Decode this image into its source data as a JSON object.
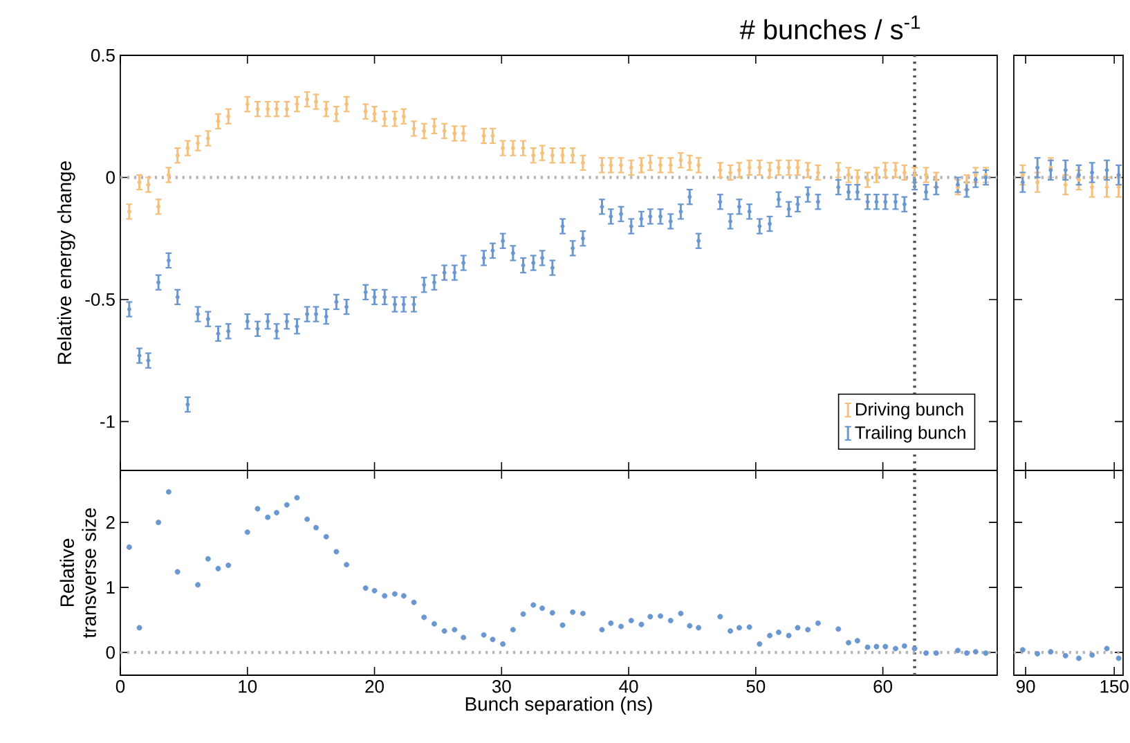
{
  "chart_data": [
    {
      "type": "scatter",
      "title": "# bunches / s$^{-1}$",
      "ylabel": "Relative energy change",
      "marker": "circle",
      "legend": "bottom right",
      "tick_labels": "y",
      "xlim": [
        0,
        69
      ],
      "ylim": [
        -1.2,
        0.5
      ],
      "xticks": [
        0,
        10,
        20,
        30,
        40,
        50,
        60
      ],
      "yticks": [
        {
          "value": 0.5,
          "label": "0.5"
        },
        0,
        -0.5,
        -1
      ],
      "ref_lines": [
        {
          "axis": "y",
          "value": 0,
          "color": "#b4b4b4",
          "line_style": "dotted"
        },
        {
          "axis": "x",
          "value": 62.5,
          "color": "#555555",
          "line_style": "dotted"
        }
      ],
      "x": [
        0.7,
        1.5,
        2.2,
        3.0,
        3.8,
        4.5,
        5.3,
        6.1,
        6.9,
        7.7,
        8.5,
        10.0,
        10.8,
        11.6,
        12.3,
        13.1,
        13.9,
        14.7,
        15.4,
        16.2,
        17.0,
        17.8,
        19.3,
        20.0,
        20.8,
        21.6,
        22.3,
        23.1,
        23.9,
        24.7,
        25.5,
        26.3,
        27.0,
        28.6,
        29.3,
        30.1,
        30.9,
        31.7,
        32.5,
        33.2,
        34.0,
        34.8,
        35.6,
        36.4,
        37.9,
        38.6,
        39.4,
        40.2,
        41.0,
        41.7,
        42.5,
        43.3,
        44.1,
        44.8,
        45.5,
        47.2,
        48.0,
        48.7,
        49.5,
        50.3,
        51.1,
        51.8,
        52.6,
        53.3,
        54.1,
        54.9,
        56.5,
        57.3,
        58.0,
        58.8,
        59.5,
        60.2,
        61.0,
        61.7,
        62.5,
        63.4,
        64.2,
        65.9,
        66.6,
        67.3,
        68.1
      ],
      "series": [
        {
          "name": "Driving bunch",
          "color": "#f4c07c",
          "values": [
            -0.14,
            -0.02,
            -0.03,
            -0.12,
            0.01,
            0.09,
            0.12,
            0.14,
            0.16,
            0.23,
            0.25,
            0.3,
            0.28,
            0.28,
            0.28,
            0.28,
            0.3,
            0.32,
            0.31,
            0.28,
            0.26,
            0.3,
            0.27,
            0.26,
            0.24,
            0.24,
            0.25,
            0.2,
            0.19,
            0.21,
            0.19,
            0.18,
            0.18,
            0.17,
            0.17,
            0.12,
            0.12,
            0.12,
            0.09,
            0.1,
            0.09,
            0.09,
            0.09,
            0.06,
            0.05,
            0.05,
            0.05,
            0.04,
            0.05,
            0.06,
            0.05,
            0.05,
            0.07,
            0.06,
            0.05,
            0.03,
            0.02,
            0.03,
            0.04,
            0.04,
            0.03,
            0.04,
            0.04,
            0.04,
            0.03,
            0.02,
            0.03,
            0.01,
            0,
            -0.01,
            0.01,
            0.03,
            0.03,
            0.02,
            0.01,
            0.01,
            -0.01,
            -0.04,
            -0.02,
            0.01,
            0.01
          ],
          "errors": [
            0.03,
            0.03,
            0.03,
            0.03,
            0.03,
            0.03,
            0.03,
            0.03,
            0.03,
            0.03,
            0.03,
            0.03,
            0.03,
            0.03,
            0.03,
            0.03,
            0.03,
            0.03,
            0.03,
            0.03,
            0.03,
            0.03,
            0.03,
            0.03,
            0.03,
            0.03,
            0.03,
            0.03,
            0.03,
            0.03,
            0.03,
            0.03,
            0.03,
            0.03,
            0.03,
            0.03,
            0.03,
            0.03,
            0.03,
            0.03,
            0.03,
            0.03,
            0.03,
            0.03,
            0.03,
            0.03,
            0.03,
            0.03,
            0.03,
            0.03,
            0.03,
            0.03,
            0.03,
            0.03,
            0.03,
            0.03,
            0.03,
            0.03,
            0.03,
            0.03,
            0.03,
            0.03,
            0.03,
            0.03,
            0.03,
            0.03,
            0.03,
            0.03,
            0.03,
            0.03,
            0.03,
            0.03,
            0.03,
            0.03,
            0.03,
            0.03,
            0.03,
            0.03,
            0.03,
            0.03,
            0.03
          ]
        },
        {
          "name": "Trailing bunch",
          "color": "#6a97cf",
          "values": [
            -0.54,
            -0.73,
            -0.75,
            -0.43,
            -0.34,
            -0.49,
            -0.93,
            -0.56,
            -0.58,
            -0.64,
            -0.63,
            -0.59,
            -0.62,
            -0.59,
            -0.63,
            -0.59,
            -0.61,
            -0.56,
            -0.56,
            -0.57,
            -0.51,
            -0.53,
            -0.47,
            -0.49,
            -0.49,
            -0.52,
            -0.52,
            -0.52,
            -0.44,
            -0.43,
            -0.39,
            -0.39,
            -0.35,
            -0.33,
            -0.3,
            -0.26,
            -0.31,
            -0.36,
            -0.35,
            -0.33,
            -0.37,
            -0.2,
            -0.29,
            -0.25,
            -0.12,
            -0.16,
            -0.15,
            -0.2,
            -0.17,
            -0.16,
            -0.16,
            -0.18,
            -0.14,
            -0.08,
            -0.26,
            -0.1,
            -0.18,
            -0.12,
            -0.14,
            -0.2,
            -0.19,
            -0.09,
            -0.13,
            -0.11,
            -0.07,
            -0.1,
            -0.04,
            -0.06,
            -0.06,
            -0.1,
            -0.1,
            -0.1,
            -0.1,
            -0.11,
            -0.02,
            -0.06,
            -0.04,
            -0.03,
            -0.05,
            -0.01,
            0
          ],
          "errors": [
            0.03,
            0.03,
            0.03,
            0.03,
            0.03,
            0.03,
            0.03,
            0.03,
            0.03,
            0.03,
            0.03,
            0.03,
            0.03,
            0.03,
            0.03,
            0.03,
            0.03,
            0.03,
            0.03,
            0.03,
            0.03,
            0.03,
            0.03,
            0.03,
            0.03,
            0.03,
            0.03,
            0.03,
            0.03,
            0.03,
            0.03,
            0.03,
            0.03,
            0.03,
            0.03,
            0.03,
            0.03,
            0.03,
            0.03,
            0.03,
            0.03,
            0.03,
            0.03,
            0.03,
            0.03,
            0.03,
            0.03,
            0.03,
            0.03,
            0.03,
            0.03,
            0.03,
            0.03,
            0.03,
            0.03,
            0.03,
            0.03,
            0.03,
            0.03,
            0.03,
            0.03,
            0.03,
            0.03,
            0.03,
            0.03,
            0.03,
            0.03,
            0.03,
            0.03,
            0.03,
            0.03,
            0.03,
            0.03,
            0.03,
            0.03,
            0.03,
            0.03,
            0.03,
            0.03,
            0.03,
            0.03
          ]
        }
      ]
    },
    {
      "type": "scatter",
      "marker": "circle",
      "tick_labels": false,
      "xlim": [
        82,
        156
      ],
      "ylim": [
        -1.2,
        0.5
      ],
      "xticks": [
        90,
        150
      ],
      "yticks": [
        0.5,
        0,
        -0.5,
        -1
      ],
      "ref_lines": [
        {
          "axis": "y",
          "value": 0,
          "color": "#b4b4b4",
          "line_style": "dotted"
        }
      ],
      "x": [
        88,
        98,
        107,
        117,
        126,
        135,
        145,
        153
      ],
      "series": [
        {
          "color": "#f4c07c",
          "values": [
            0.01,
            -0.02,
            0.04,
            -0.03,
            -0.01,
            -0.04,
            -0.04,
            -0.04
          ],
          "errors": [
            0.04,
            0.04,
            0.04,
            0.04,
            0.04,
            0.04,
            0.04,
            0.04
          ]
        },
        {
          "color": "#6a97cf",
          "values": [
            -0.02,
            0.04,
            0.03,
            0.03,
            0.01,
            0.02,
            0.03,
            0.01
          ],
          "errors": [
            0.04,
            0.04,
            0.04,
            0.04,
            0.04,
            0.04,
            0.04,
            0.04
          ]
        }
      ]
    },
    {
      "type": "scatter",
      "xlabel": "Bunch separation (ns)",
      "ylabel": "Relative transverse size",
      "marker": "circle",
      "xlim": [
        0,
        69
      ],
      "ylim": [
        -0.35,
        2.8
      ],
      "xticks": [
        0,
        10,
        20,
        30,
        40,
        50,
        60
      ],
      "yticks": [
        0,
        1,
        2
      ],
      "ref_lines": [
        {
          "axis": "y",
          "value": 0,
          "color": "#b4b4b4",
          "line_style": "dotted"
        },
        {
          "axis": "x",
          "value": 62.5,
          "color": "#555555",
          "line_style": "dotted"
        }
      ],
      "x": [
        0.7,
        1.5,
        2.2,
        3.0,
        3.8,
        4.5,
        5.3,
        6.1,
        6.9,
        7.7,
        8.5,
        10.0,
        10.8,
        11.6,
        12.3,
        13.1,
        13.9,
        14.7,
        15.4,
        16.2,
        17.0,
        17.8,
        19.3,
        20.0,
        20.8,
        21.6,
        22.3,
        23.1,
        23.9,
        24.7,
        25.5,
        26.3,
        27.0,
        28.6,
        29.3,
        30.1,
        30.9,
        31.7,
        32.5,
        33.2,
        34.0,
        34.8,
        35.6,
        36.4,
        37.9,
        38.6,
        39.4,
        40.2,
        41.0,
        41.7,
        42.5,
        43.3,
        44.1,
        44.8,
        45.5,
        47.2,
        48.0,
        48.7,
        49.5,
        50.3,
        51.1,
        51.8,
        52.6,
        53.3,
        54.1,
        54.9,
        56.5,
        57.3,
        58.0,
        58.8,
        59.5,
        60.2,
        61.0,
        61.7,
        62.5,
        63.4,
        64.2,
        65.9,
        66.6,
        67.3,
        68.1
      ],
      "series": [
        {
          "color": "#6a97cf",
          "values": [
            1.62,
            0.38,
            null,
            2.0,
            2.47,
            1.24,
            null,
            1.04,
            1.44,
            1.29,
            1.34,
            1.85,
            2.21,
            2.08,
            2.15,
            2.27,
            2.38,
            2.05,
            1.92,
            1.78,
            1.55,
            1.35,
            0.99,
            0.95,
            0.87,
            0.9,
            0.87,
            0.77,
            0.54,
            0.44,
            0.33,
            0.35,
            0.23,
            0.27,
            0.2,
            0.13,
            0.35,
            0.59,
            0.73,
            0.68,
            0.61,
            0.42,
            0.62,
            0.6,
            0.35,
            0.45,
            0.4,
            0.49,
            0.43,
            0.55,
            0.56,
            0.49,
            0.6,
            0.41,
            0.38,
            0.55,
            0.33,
            0.38,
            0.39,
            0.13,
            0.26,
            0.31,
            0.26,
            0.38,
            0.35,
            0.45,
            0.36,
            0.15,
            0.18,
            0.08,
            0.09,
            0.09,
            0.06,
            0.1,
            0.06,
            -0.01,
            -0.01,
            0.03,
            -0.01,
            0.01,
            -0.01
          ]
        }
      ]
    },
    {
      "type": "scatter",
      "marker": "circle",
      "tick_labels": "x",
      "xlim": [
        82,
        156
      ],
      "ylim": [
        -0.35,
        2.8
      ],
      "xticks": [
        90,
        150
      ],
      "yticks": [
        0,
        1,
        2
      ],
      "ref_lines": [
        {
          "axis": "y",
          "value": 0,
          "color": "#b4b4b4",
          "line_style": "dotted"
        }
      ],
      "x": [
        88,
        98,
        107,
        117,
        126,
        135,
        145,
        153
      ],
      "series": [
        {
          "color": "#6a97cf",
          "values": [
            0.04,
            -0.02,
            0.01,
            -0.05,
            -0.09,
            -0.04,
            0.06,
            -0.09
          ]
        }
      ]
    }
  ]
}
